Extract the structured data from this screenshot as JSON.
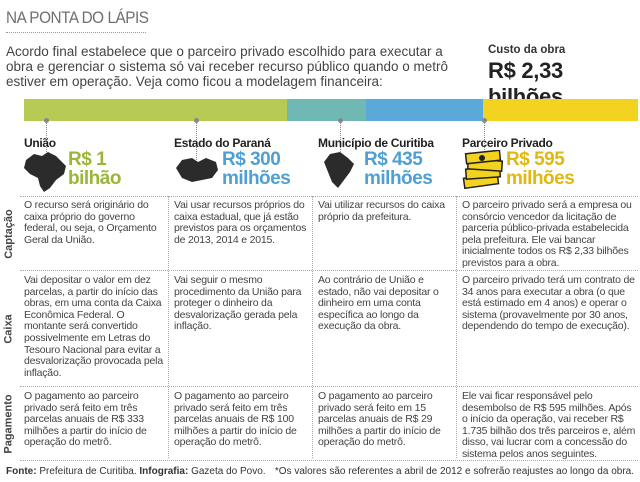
{
  "header": {
    "kicker": "NA PONTA DO LÁPIS",
    "intro": "Acordo final estabelece que o parceiro privado escolhido para executar a obra e gerenciar o sistema só vai receber recurso público quando o metrô estiver em operação. Veja como ficou a modelagem financeira:",
    "cost_label": "Custo da obra",
    "cost_value": "R$ 2,33 bilhões"
  },
  "colors": {
    "uniao": "#b7ca54",
    "estado": "#6fb8b4",
    "municipio": "#5aa9d8",
    "parceiro": "#f4d320"
  },
  "entities": [
    {
      "name": "União",
      "amount_line1": "R$ 1",
      "amount_line2": "bilhão",
      "icon": "brazil-map-icon"
    },
    {
      "name": "Estado do Paraná",
      "amount_line1": "R$ 300",
      "amount_line2": "milhões",
      "icon": "parana-map-icon"
    },
    {
      "name": "Município de Curitiba",
      "amount_line1": "R$ 435",
      "amount_line2": "milhões",
      "icon": "curitiba-map-icon"
    },
    {
      "name": "Parceiro Privado",
      "amount_line1": "R$ 595",
      "amount_line2": "milhões",
      "icon": "money-stack-icon"
    }
  ],
  "rows": [
    {
      "label": "Captação",
      "cells": [
        "O recurso será originário do caixa próprio do governo federal, ou seja, o Orçamento Geral da União.",
        "Vai usar recursos próprios do caixa estadual, que já estão previstos para os orçamentos de 2013, 2014 e 2015.",
        "Vai utilizar recursos do caixa próprio da prefeitura.",
        "O parceiro privado será a empresa ou consórcio vencedor da licitação de parceria público-privada estabelecida pela prefeitura. Ele vai bancar inicialmente todos os R$ 2,33 bilhões previstos para a obra."
      ]
    },
    {
      "label": "Caixa",
      "cells": [
        "Vai depositar o valor em dez parcelas, a partir do início das obras, em uma conta da Caixa Econômica Federal. O montante será convertido possivelmente em Letras do Tesouro Nacional para evitar a desvalorização provocada pela inflação.",
        "Vai seguir o mesmo procedimento da União para proteger o dinheiro da desvalorização gerada pela inflação.",
        "Ao contrário de União e estado, não vai depositar o dinheiro em uma conta específica ao longo da execução da obra.",
        "O parceiro privado terá um contrato de 34 anos para executar a obra (o que está estimado em 4 anos) e operar o sistema (provavelmente por 30 anos, dependendo do tempo de execução)."
      ]
    },
    {
      "label": "Pagamento",
      "cells": [
        "O pagamento ao parceiro privado será feito em três parcelas anuais de R$ 333 milhões a partir do início de operação do metrô.",
        "O pagamento ao parceiro privado será feito em três parcelas anuais de R$ 100 milhões a partir do início de operação do metrô.",
        "O pagamento ao parceiro privado será feito em 15 parcelas anuais de R$ 29 milhões a partir do início de operação do metrô.",
        "Ele vai ficar responsável pelo desembolso de R$ 595 milhões. Após o início da operação, vai receber R$ 1.735 bilhão dos três parceiros e, além disso, vai lucrar com a concessão do sistema pelos anos seguintes."
      ]
    }
  ],
  "footer": {
    "source_label": "Fonte:",
    "source_text": "Prefeitura de Curitiba.",
    "infografia_label": "Infografia:",
    "infografia_text": "Gazeta do Povo.",
    "note": "*Os valores são referentes a abril de 2012 e sofrerão reajustes ao longo da obra."
  }
}
